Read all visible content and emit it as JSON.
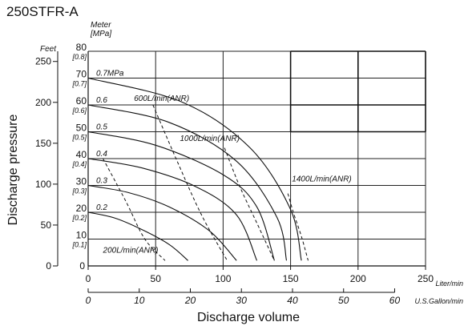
{
  "chart_data": {
    "type": "line",
    "title": "250STFR-A",
    "xlabel": "Discharge volume",
    "ylabel": "Discharge pressure",
    "x_unit": "Liter/min",
    "x_range": [
      0,
      250
    ],
    "x_ticks": [
      0,
      50,
      100,
      150,
      200,
      250
    ],
    "x2_unit": "U.S.Gallon/min",
    "x2_ticks": [
      0,
      10,
      20,
      30,
      40,
      50,
      60
    ],
    "y_unit_meter": "Meter",
    "y_unit_mpa": "[MPa]",
    "y_unit_feet": "Feet",
    "y_range_m": [
      0,
      80
    ],
    "y_ticks_m": [
      0,
      10,
      20,
      30,
      40,
      50,
      60,
      70,
      80
    ],
    "y_ticks_mpa": [
      "[0.1]",
      "[0.2]",
      "[0.3]",
      "[0.4]",
      "[0.5]",
      "[0.6]",
      "[0.7]",
      "[0.8]"
    ],
    "y_ticks_feet": [
      0,
      50,
      100,
      150,
      200,
      250
    ],
    "pressure_curves": [
      {
        "label": "0.2",
        "points": [
          [
            0,
            20
          ],
          [
            20,
            17.8
          ],
          [
            40,
            13.5
          ],
          [
            60,
            8
          ],
          [
            74,
            2
          ]
        ]
      },
      {
        "label": "0.3",
        "points": [
          [
            0,
            30
          ],
          [
            30,
            27.3
          ],
          [
            60,
            22
          ],
          [
            90,
            13
          ],
          [
            110,
            2
          ]
        ]
      },
      {
        "label": "0.4",
        "points": [
          [
            0,
            40
          ],
          [
            40,
            36.5
          ],
          [
            80,
            29.5
          ],
          [
            110,
            19
          ],
          [
            125,
            2
          ]
        ]
      },
      {
        "label": "0.5",
        "points": [
          [
            0,
            50
          ],
          [
            50,
            45
          ],
          [
            100,
            34
          ],
          [
            125,
            22
          ],
          [
            138,
            2
          ]
        ]
      },
      {
        "label": "0.6",
        "points": [
          [
            0,
            60
          ],
          [
            60,
            53.5
          ],
          [
            110,
            39
          ],
          [
            140,
            18
          ],
          [
            147,
            2
          ]
        ]
      },
      {
        "label": "0.7MPa",
        "points": [
          [
            0,
            70
          ],
          [
            70,
            61
          ],
          [
            120,
            44
          ],
          [
            150,
            21
          ],
          [
            158,
            2
          ]
        ]
      }
    ],
    "air_consumption_curves": [
      {
        "label": "200L/min(ANR)",
        "points": [
          [
            11,
            40
          ],
          [
            28,
            24
          ],
          [
            42,
            10
          ],
          [
            57,
            2
          ]
        ]
      },
      {
        "label": "600L/min(ANR)",
        "points": [
          [
            48,
            60
          ],
          [
            66,
            39
          ],
          [
            84,
            19
          ],
          [
            103,
            2
          ]
        ]
      },
      {
        "label": "1000L/min(ANR)",
        "points": [
          [
            101,
            44
          ],
          [
            112,
            30
          ],
          [
            125,
            16
          ],
          [
            138,
            2
          ]
        ]
      },
      {
        "label": "1400L/min(ANR)",
        "points": [
          [
            148,
            27
          ],
          [
            152,
            20
          ],
          [
            158,
            11
          ],
          [
            163,
            2
          ]
        ]
      }
    ]
  }
}
